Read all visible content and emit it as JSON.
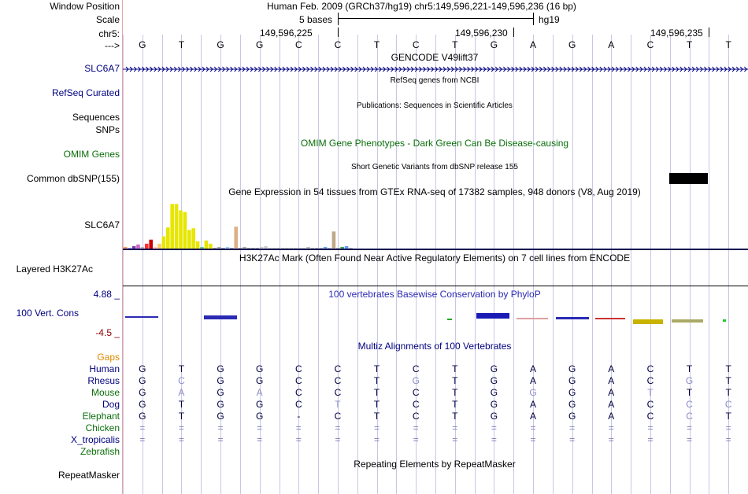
{
  "labels": {
    "window_position": "Window Position",
    "scale": "Scale",
    "chrom": "chr5:",
    "strand": "--->",
    "gencode": "SLC6A7",
    "refseq": "RefSeq Curated",
    "sequences": "Sequences",
    "snps": "SNPs",
    "omim": "OMIM Genes",
    "dbsnp": "Common dbSNP(155)",
    "gtex": "SLC6A7",
    "h3k27ac": "Layered H3K27Ac",
    "cons_max": "4.88 _",
    "cons": "100 Vert. Cons",
    "cons_min": "-4.5 _",
    "gaps": "Gaps",
    "species": [
      "Human",
      "Rhesus",
      "Mouse",
      "Dog",
      "Elephant",
      "Chicken",
      "X_tropicalis",
      "Zebrafish"
    ],
    "repeatmasker": "RepeatMasker"
  },
  "header": {
    "position": "Human Feb. 2009 (GRCh37/hg19)   chr5:149,596,221-149,596,236 (16 bp)",
    "scale_text": "5 bases",
    "assembly": "hg19",
    "coord_labels": [
      "149,596,225",
      "149,596,230",
      "149,596,235"
    ]
  },
  "sequence": [
    "G",
    "T",
    "G",
    "G",
    "C",
    "C",
    "T",
    "C",
    "T",
    "G",
    "A",
    "G",
    "A",
    "C",
    "T",
    "T"
  ],
  "tracks": {
    "gencode_title": "GENCODE V49lift37",
    "refseq_title": "RefSeq genes from NCBI",
    "publications_title": "Publications: Sequences in Scientific Articles",
    "omim_title": "OMIM Gene Phenotypes - Dark Green Can Be Disease-causing",
    "dbsnp_title": "Short Genetic Variants from dbSNP release 155",
    "gtex_title": "Gene Expression in 54 tissues from GTEx RNA-seq of 17382 samples, 948 donors (V8, Aug 2019)",
    "h3k27ac_title": "H3K27Ac Mark (Often Found Near Active Regulatory Elements) on 7 cell lines from ENCODE",
    "phylop_title": "100 vertebrates Basewise Conservation by PhyloP",
    "multiz_title": "Multiz Alignments of 100 Vertebrates",
    "repeatmasker_title": "Repeating Elements by RepeatMasker"
  },
  "alignment": {
    "Rhesus": [
      "G",
      "C",
      "G",
      "G",
      "C",
      "C",
      "T",
      "G",
      "T",
      "G",
      "A",
      "G",
      "A",
      "C",
      "G",
      "T"
    ],
    "Mouse": [
      "G",
      "A",
      "G",
      "A",
      "C",
      "C",
      "T",
      "C",
      "T",
      "G",
      "G",
      "G",
      "A",
      "T",
      "T",
      "T"
    ],
    "Dog": [
      "G",
      "T",
      "G",
      "G",
      "C",
      "T",
      "T",
      "C",
      "T",
      "G",
      "A",
      "G",
      "A",
      "C",
      "C",
      "C"
    ],
    "Elephant": [
      "G",
      "T",
      "G",
      "G",
      "-",
      "C",
      "T",
      "C",
      "T",
      "G",
      "A",
      "G",
      "A",
      "C",
      "C",
      "T"
    ],
    "Chicken": [
      "=",
      "=",
      "=",
      "=",
      "=",
      "=",
      "=",
      "=",
      "=",
      "=",
      "=",
      "=",
      "=",
      "=",
      "=",
      "="
    ],
    "X_tropicalis": [
      "=",
      "=",
      "=",
      "=",
      "=",
      "=",
      "=",
      "=",
      "=",
      "=",
      "=",
      "=",
      "=",
      "=",
      "=",
      "="
    ]
  },
  "colors": {
    "track_title_blue": "#000080",
    "omim_green": "#0a6e0a",
    "gaps_orange": "#e08a00",
    "phylop_blue": "#2a2ab4",
    "gtex_yellow": "#e6e600",
    "dbsnp_black": "#000000"
  },
  "chart_data": {
    "type": "bar",
    "title": "Gene Expression in 54 tissues from GTEx RNA-seq of 17382 samples, 948 donors (V8, Aug 2019)",
    "values": [
      2,
      1,
      3,
      5,
      2,
      6,
      11,
      2,
      6,
      15,
      26,
      55,
      55,
      47,
      45,
      23,
      25,
      9,
      2,
      10,
      6,
      1,
      2,
      1,
      2,
      1,
      27,
      1,
      2,
      1,
      1,
      1,
      2,
      3,
      1,
      1,
      1,
      1,
      1,
      1,
      1,
      1,
      1,
      2,
      1,
      1,
      1,
      2,
      1,
      21,
      1,
      2,
      3,
      1
    ],
    "colors": [
      "#ff9966",
      "#9999ff",
      "#7a3aa4",
      "#cc66cc",
      "#bbbbbb",
      "#ff3333",
      "#cc0000",
      "#ffcccc",
      "#ffcc66",
      "#e6e600",
      "#e6e600",
      "#e6e600",
      "#e6e600",
      "#e6e600",
      "#e6e600",
      "#e6e600",
      "#e6e600",
      "#e6e600",
      "#66cc99",
      "#e6e600",
      "#e6e600",
      "#aaaaaa",
      "#aaaaaa",
      "#aaaaaa",
      "#99ccff",
      "#aaaaaa",
      "#ddb088",
      "#aaaaaa",
      "#aaaaaa",
      "#aaaaaa",
      "#aaaaaa",
      "#aaaaaa",
      "#cccccc",
      "#cccccc",
      "#cccccc",
      "#cccccc",
      "#cccccc",
      "#cccccc",
      "#cccccc",
      "#cccccc",
      "#cccccc",
      "#cccccc",
      "#cccccc",
      "#bbbbbb",
      "#bbbbbb",
      "#bbbbbb",
      "#bbbbbb",
      "#66aaee",
      "#bbbbbb",
      "#c0a888",
      "#bbbbbb",
      "#33aa55",
      "#6699ff",
      "#bbbbbb"
    ]
  }
}
